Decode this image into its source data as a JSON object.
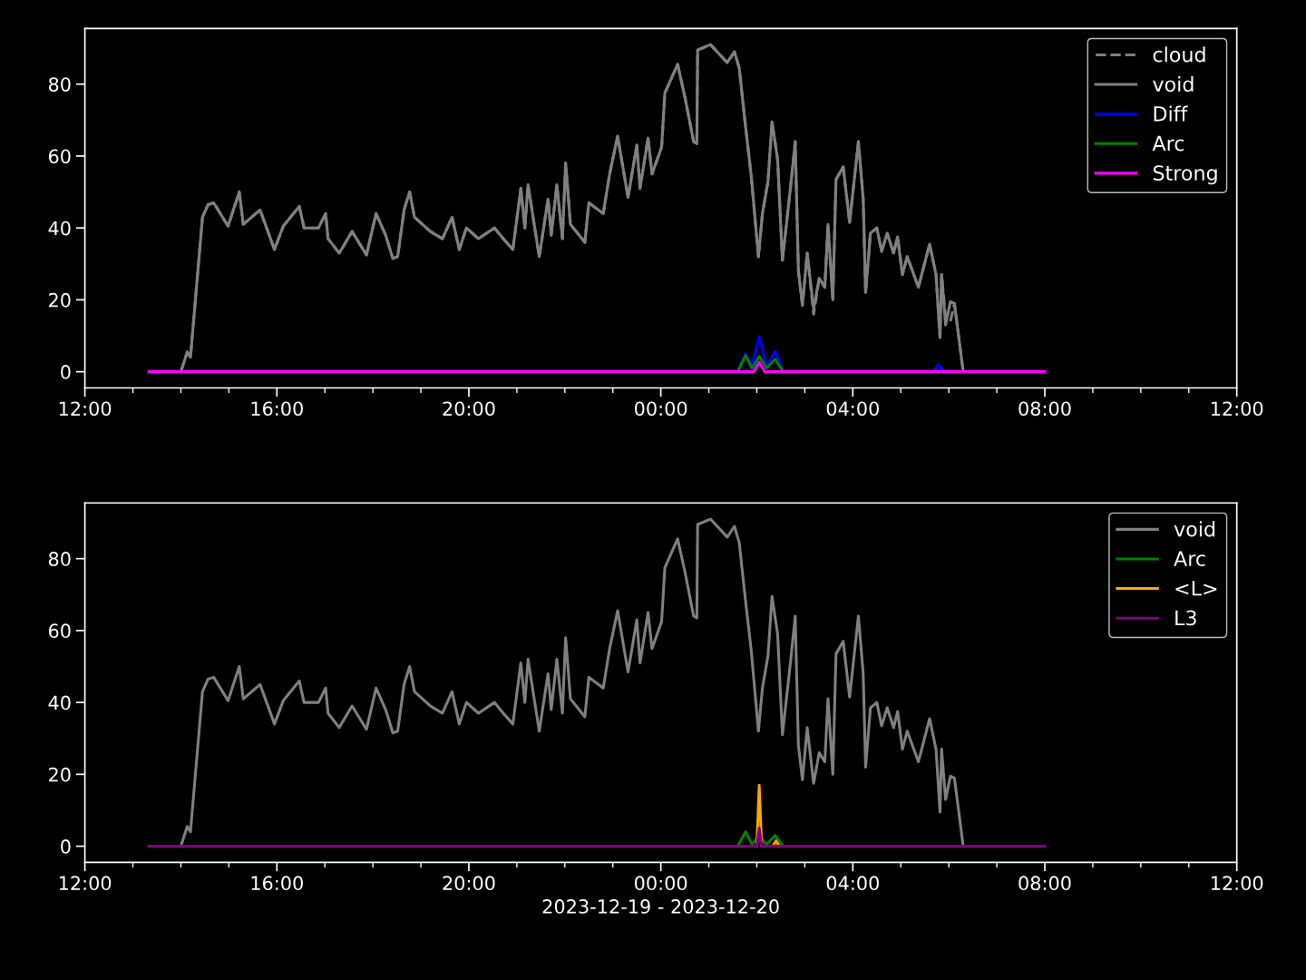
{
  "chart_data": [
    {
      "type": "line",
      "xlim": [
        "2023-12-19T12:00",
        "2023-12-20T12:00"
      ],
      "xticks": [
        {
          "value": "2023-12-19T12:00",
          "label": "12:00"
        },
        {
          "value": "2023-12-19T13:00",
          "label": null
        },
        {
          "value": "2023-12-19T14:00",
          "label": null
        },
        {
          "value": "2023-12-19T15:00",
          "label": null
        },
        {
          "value": "2023-12-19T16:00",
          "label": "16:00"
        },
        {
          "value": "2023-12-19T17:00",
          "label": null
        },
        {
          "value": "2023-12-19T18:00",
          "label": null
        },
        {
          "value": "2023-12-19T19:00",
          "label": null
        },
        {
          "value": "2023-12-19T20:00",
          "label": "20:00"
        },
        {
          "value": "2023-12-19T21:00",
          "label": null
        },
        {
          "value": "2023-12-19T22:00",
          "label": null
        },
        {
          "value": "2023-12-19T23:00",
          "label": null
        },
        {
          "value": "2023-12-20T00:00",
          "label": "00:00"
        },
        {
          "value": "2023-12-20T01:00",
          "label": null
        },
        {
          "value": "2023-12-20T02:00",
          "label": null
        },
        {
          "value": "2023-12-20T03:00",
          "label": null
        },
        {
          "value": "2023-12-20T04:00",
          "label": "04:00"
        },
        {
          "value": "2023-12-20T05:00",
          "label": null
        },
        {
          "value": "2023-12-20T06:00",
          "label": null
        },
        {
          "value": "2023-12-20T07:00",
          "label": null
        },
        {
          "value": "2023-12-20T08:00",
          "label": "08:00"
        },
        {
          "value": "2023-12-20T09:00",
          "label": null
        },
        {
          "value": "2023-12-20T10:00",
          "label": null
        },
        {
          "value": "2023-12-20T11:00",
          "label": null
        },
        {
          "value": "2023-12-20T12:00",
          "label": "12:00"
        }
      ],
      "ylim": [
        -4.5,
        95.5
      ],
      "yticks": [
        0,
        20,
        40,
        60,
        80
      ],
      "grid": false,
      "legend": "top right",
      "series": [
        {
          "name": "cloud",
          "color": "#808080",
          "line_style": "dashed",
          "x": [
            "2023-12-19T14:00",
            "2023-12-19T14:08",
            "2023-12-19T14:12",
            "2023-12-19T14:27",
            "2023-12-19T14:34",
            "2023-12-19T14:41",
            "2023-12-19T14:59",
            "2023-12-19T15:13",
            "2023-12-19T15:18",
            "2023-12-19T15:39",
            "2023-12-19T15:57",
            "2023-12-19T16:08",
            "2023-12-19T16:28",
            "2023-12-19T16:34",
            "2023-12-19T16:52",
            "2023-12-19T17:01",
            "2023-12-19T17:04",
            "2023-12-19T17:18",
            "2023-12-19T17:34",
            "2023-12-19T17:52",
            "2023-12-19T18:04",
            "2023-12-19T18:16",
            "2023-12-19T18:25",
            "2023-12-19T18:31",
            "2023-12-19T18:39",
            "2023-12-19T18:46",
            "2023-12-19T18:52",
            "2023-12-19T19:12",
            "2023-12-19T19:27",
            "2023-12-19T19:39",
            "2023-12-19T19:48",
            "2023-12-19T19:57",
            "2023-12-19T20:12",
            "2023-12-19T20:32",
            "2023-12-19T20:43",
            "2023-12-19T20:55",
            "2023-12-19T21:05",
            "2023-12-19T21:10",
            "2023-12-19T21:14",
            "2023-12-19T21:28",
            "2023-12-19T21:39",
            "2023-12-19T21:43",
            "2023-12-19T21:50",
            "2023-12-19T21:57",
            "2023-12-19T22:01",
            "2023-12-19T22:07",
            "2023-12-19T22:25",
            "2023-12-19T22:30",
            "2023-12-19T22:48",
            "2023-12-19T22:56",
            "2023-12-19T23:06",
            "2023-12-19T23:19",
            "2023-12-19T23:30",
            "2023-12-19T23:34",
            "2023-12-19T23:44",
            "2023-12-19T23:49",
            "2023-12-20T00:01",
            "2023-12-20T00:05",
            "2023-12-20T00:21",
            "2023-12-20T00:30",
            "2023-12-20T00:41",
            "2023-12-20T00:45",
            "2023-12-20T00:46",
            "2023-12-20T01:02",
            "2023-12-20T01:23",
            "2023-12-20T01:32",
            "2023-12-20T01:38",
            "2023-12-20T01:46",
            "2023-12-20T01:53",
            "2023-12-20T02:02",
            "2023-12-20T02:07",
            "2023-12-20T02:14",
            "2023-12-20T02:19",
            "2023-12-20T02:26",
            "2023-12-20T02:32",
            "2023-12-20T02:42",
            "2023-12-20T02:48",
            "2023-12-20T02:52",
            "2023-12-20T02:57",
            "2023-12-20T03:03",
            "2023-12-20T03:11",
            "2023-12-20T03:18",
            "2023-12-20T03:25",
            "2023-12-20T03:29",
            "2023-12-20T03:35",
            "2023-12-20T03:39",
            "2023-12-20T03:48",
            "2023-12-20T03:56",
            "2023-12-20T04:07",
            "2023-12-20T04:13",
            "2023-12-20T04:16",
            "2023-12-20T04:22",
            "2023-12-20T04:30",
            "2023-12-20T04:36",
            "2023-12-20T04:43",
            "2023-12-20T04:51",
            "2023-12-20T04:56",
            "2023-12-20T05:02",
            "2023-12-20T05:08",
            "2023-12-20T05:22",
            "2023-12-20T05:36",
            "2023-12-20T05:44",
            "2023-12-20T05:49",
            "2023-12-20T05:51",
            "2023-12-20T05:56",
            "2023-12-20T06:02",
            "2023-12-20T06:07",
            "2023-12-20T06:18"
          ],
          "values": [
            0,
            5.5,
            4,
            43,
            46.5,
            47,
            40.5,
            50,
            41,
            45,
            34,
            40.5,
            46,
            40,
            40,
            44,
            37,
            33,
            39,
            32.5,
            44,
            38,
            31.5,
            32,
            45,
            50,
            43,
            39,
            37,
            43,
            34,
            40,
            37,
            40,
            37,
            34,
            51,
            40,
            52,
            32,
            48,
            38,
            52,
            37,
            58,
            41,
            36,
            47,
            44,
            55,
            65.5,
            48.5,
            63,
            51,
            65,
            55,
            62.5,
            77.5,
            85.5,
            76.5,
            64,
            63.5,
            89.5,
            91,
            86,
            89,
            84.5,
            68,
            54.5,
            32,
            44,
            53,
            69.5,
            59,
            31,
            51,
            64,
            28,
            18.5,
            33,
            16,
            26,
            23.5,
            41,
            20,
            53.5,
            57,
            41.5,
            64,
            48,
            22,
            38.5,
            40,
            33.5,
            38.5,
            33,
            37.5,
            27,
            32,
            23.5,
            35.5,
            27,
            9.5,
            27,
            15,
            14,
            19,
            0
          ]
        },
        {
          "name": "void",
          "color": "#808080",
          "line_style": "solid",
          "x": [
            "2023-12-19T14:00",
            "2023-12-19T14:08",
            "2023-12-19T14:12",
            "2023-12-19T14:27",
            "2023-12-19T14:34",
            "2023-12-19T14:41",
            "2023-12-19T14:59",
            "2023-12-19T15:13",
            "2023-12-19T15:18",
            "2023-12-19T15:39",
            "2023-12-19T15:57",
            "2023-12-19T16:08",
            "2023-12-19T16:28",
            "2023-12-19T16:34",
            "2023-12-19T16:52",
            "2023-12-19T17:01",
            "2023-12-19T17:04",
            "2023-12-19T17:18",
            "2023-12-19T17:34",
            "2023-12-19T17:52",
            "2023-12-19T18:04",
            "2023-12-19T18:16",
            "2023-12-19T18:25",
            "2023-12-19T18:31",
            "2023-12-19T18:39",
            "2023-12-19T18:46",
            "2023-12-19T18:52",
            "2023-12-19T19:12",
            "2023-12-19T19:27",
            "2023-12-19T19:39",
            "2023-12-19T19:48",
            "2023-12-19T19:57",
            "2023-12-19T20:12",
            "2023-12-19T20:32",
            "2023-12-19T20:43",
            "2023-12-19T20:55",
            "2023-12-19T21:05",
            "2023-12-19T21:10",
            "2023-12-19T21:14",
            "2023-12-19T21:28",
            "2023-12-19T21:39",
            "2023-12-19T21:43",
            "2023-12-19T21:50",
            "2023-12-19T21:57",
            "2023-12-19T22:01",
            "2023-12-19T22:07",
            "2023-12-19T22:25",
            "2023-12-19T22:30",
            "2023-12-19T22:48",
            "2023-12-19T22:56",
            "2023-12-19T23:06",
            "2023-12-19T23:19",
            "2023-12-19T23:30",
            "2023-12-19T23:34",
            "2023-12-19T23:44",
            "2023-12-19T23:49",
            "2023-12-20T00:01",
            "2023-12-20T00:05",
            "2023-12-20T00:21",
            "2023-12-20T00:30",
            "2023-12-20T00:41",
            "2023-12-20T00:45",
            "2023-12-20T00:46",
            "2023-12-20T01:02",
            "2023-12-20T01:23",
            "2023-12-20T01:32",
            "2023-12-20T01:38",
            "2023-12-20T01:46",
            "2023-12-20T01:53",
            "2023-12-20T02:02",
            "2023-12-20T02:07",
            "2023-12-20T02:14",
            "2023-12-20T02:19",
            "2023-12-20T02:26",
            "2023-12-20T02:32",
            "2023-12-20T02:42",
            "2023-12-20T02:48",
            "2023-12-20T02:52",
            "2023-12-20T02:57",
            "2023-12-20T03:03",
            "2023-12-20T03:11",
            "2023-12-20T03:18",
            "2023-12-20T03:25",
            "2023-12-20T03:29",
            "2023-12-20T03:35",
            "2023-12-20T03:39",
            "2023-12-20T03:48",
            "2023-12-20T03:56",
            "2023-12-20T04:07",
            "2023-12-20T04:13",
            "2023-12-20T04:16",
            "2023-12-20T04:22",
            "2023-12-20T04:30",
            "2023-12-20T04:36",
            "2023-12-20T04:43",
            "2023-12-20T04:51",
            "2023-12-20T04:56",
            "2023-12-20T05:02",
            "2023-12-20T05:08",
            "2023-12-20T05:22",
            "2023-12-20T05:36",
            "2023-12-20T05:44",
            "2023-12-20T05:49",
            "2023-12-20T05:51",
            "2023-12-20T05:56",
            "2023-12-20T06:02",
            "2023-12-20T06:07",
            "2023-12-20T06:18"
          ],
          "values": [
            0,
            5.5,
            4,
            43,
            46.5,
            47,
            40.5,
            50,
            41,
            45,
            34,
            40.5,
            46,
            40,
            40,
            44,
            37,
            33,
            39,
            32.5,
            44,
            38,
            31.5,
            32,
            45,
            50,
            43,
            39,
            37,
            43,
            34,
            40,
            37,
            40,
            37,
            34,
            51,
            40,
            52,
            32,
            48,
            38,
            52,
            37,
            58,
            41,
            36,
            47,
            44,
            55,
            65.5,
            48.5,
            63,
            51,
            65,
            55,
            62.5,
            77.5,
            85.5,
            76.5,
            64,
            63.5,
            89.5,
            91,
            86,
            89,
            84.5,
            68,
            54.5,
            32,
            44,
            53,
            69.5,
            59,
            31,
            51,
            64,
            28,
            18.5,
            33,
            17.5,
            26,
            23.5,
            41,
            20,
            53.5,
            57,
            41.5,
            64,
            48,
            22,
            38.5,
            40,
            33.5,
            38.5,
            33,
            37.5,
            27,
            32,
            23.5,
            35.5,
            27,
            9.5,
            27,
            13,
            19.5,
            19,
            0
          ]
        },
        {
          "name": "Diff",
          "color": "#0000ff",
          "line_style": "solid",
          "x": [
            "2023-12-20T01:36",
            "2023-12-20T01:46",
            "2023-12-20T01:54",
            "2023-12-20T02:03",
            "2023-12-20T02:12",
            "2023-12-20T02:23",
            "2023-12-20T02:33",
            "2023-12-20T04:00",
            "2023-12-20T05:40",
            "2023-12-20T05:47",
            "2023-12-20T05:54"
          ],
          "values": [
            0,
            5,
            1.5,
            9.8,
            1.5,
            5.7,
            0,
            null,
            0,
            2,
            0
          ]
        },
        {
          "name": "Arc",
          "color": "#008000",
          "line_style": "solid",
          "x": [
            "2023-12-20T01:36",
            "2023-12-20T01:46",
            "2023-12-20T01:54",
            "2023-12-20T02:03",
            "2023-12-20T02:12",
            "2023-12-20T02:23",
            "2023-12-20T02:33"
          ],
          "values": [
            0,
            4.5,
            1,
            4.3,
            1,
            3.5,
            0
          ]
        },
        {
          "name": "Strong",
          "color": "#ff00ff",
          "line_style": "solid",
          "x": [
            "2023-12-19T13:20",
            "2023-12-20T01:56",
            "2023-12-20T02:03",
            "2023-12-20T02:10",
            "2023-12-20T08:00"
          ],
          "values": [
            0,
            0,
            2.6,
            0,
            0
          ]
        }
      ]
    },
    {
      "type": "line",
      "xlim": [
        "2023-12-19T12:00",
        "2023-12-20T12:00"
      ],
      "xticks": [
        {
          "value": "2023-12-19T12:00",
          "label": "12:00"
        },
        {
          "value": "2023-12-19T13:00",
          "label": null
        },
        {
          "value": "2023-12-19T14:00",
          "label": null
        },
        {
          "value": "2023-12-19T15:00",
          "label": null
        },
        {
          "value": "2023-12-19T16:00",
          "label": "16:00"
        },
        {
          "value": "2023-12-19T17:00",
          "label": null
        },
        {
          "value": "2023-12-19T18:00",
          "label": null
        },
        {
          "value": "2023-12-19T19:00",
          "label": null
        },
        {
          "value": "2023-12-19T20:00",
          "label": "20:00"
        },
        {
          "value": "2023-12-19T21:00",
          "label": null
        },
        {
          "value": "2023-12-19T22:00",
          "label": null
        },
        {
          "value": "2023-12-19T23:00",
          "label": null
        },
        {
          "value": "2023-12-20T00:00",
          "label": "00:00"
        },
        {
          "value": "2023-12-20T01:00",
          "label": null
        },
        {
          "value": "2023-12-20T02:00",
          "label": null
        },
        {
          "value": "2023-12-20T03:00",
          "label": null
        },
        {
          "value": "2023-12-20T04:00",
          "label": "04:00"
        },
        {
          "value": "2023-12-20T05:00",
          "label": null
        },
        {
          "value": "2023-12-20T06:00",
          "label": null
        },
        {
          "value": "2023-12-20T07:00",
          "label": null
        },
        {
          "value": "2023-12-20T08:00",
          "label": "08:00"
        },
        {
          "value": "2023-12-20T09:00",
          "label": null
        },
        {
          "value": "2023-12-20T10:00",
          "label": null
        },
        {
          "value": "2023-12-20T11:00",
          "label": null
        },
        {
          "value": "2023-12-20T12:00",
          "label": "12:00"
        }
      ],
      "ylim": [
        -4.5,
        95.5
      ],
      "yticks": [
        0,
        20,
        40,
        60,
        80
      ],
      "grid": false,
      "legend": "top right",
      "xlabel": "2023-12-19 - 2023-12-20",
      "series": [
        {
          "name": "void",
          "color": "#808080",
          "line_style": "solid",
          "x": [
            "2023-12-19T14:00",
            "2023-12-19T14:08",
            "2023-12-19T14:12",
            "2023-12-19T14:27",
            "2023-12-19T14:34",
            "2023-12-19T14:41",
            "2023-12-19T14:59",
            "2023-12-19T15:13",
            "2023-12-19T15:18",
            "2023-12-19T15:39",
            "2023-12-19T15:57",
            "2023-12-19T16:08",
            "2023-12-19T16:28",
            "2023-12-19T16:34",
            "2023-12-19T16:52",
            "2023-12-19T17:01",
            "2023-12-19T17:04",
            "2023-12-19T17:18",
            "2023-12-19T17:34",
            "2023-12-19T17:52",
            "2023-12-19T18:04",
            "2023-12-19T18:16",
            "2023-12-19T18:25",
            "2023-12-19T18:31",
            "2023-12-19T18:39",
            "2023-12-19T18:46",
            "2023-12-19T18:52",
            "2023-12-19T19:12",
            "2023-12-19T19:27",
            "2023-12-19T19:39",
            "2023-12-19T19:48",
            "2023-12-19T19:57",
            "2023-12-19T20:12",
            "2023-12-19T20:32",
            "2023-12-19T20:43",
            "2023-12-19T20:55",
            "2023-12-19T21:05",
            "2023-12-19T21:10",
            "2023-12-19T21:14",
            "2023-12-19T21:28",
            "2023-12-19T21:39",
            "2023-12-19T21:43",
            "2023-12-19T21:50",
            "2023-12-19T21:57",
            "2023-12-19T22:01",
            "2023-12-19T22:07",
            "2023-12-19T22:25",
            "2023-12-19T22:30",
            "2023-12-19T22:48",
            "2023-12-19T22:56",
            "2023-12-19T23:06",
            "2023-12-19T23:19",
            "2023-12-19T23:30",
            "2023-12-19T23:34",
            "2023-12-19T23:44",
            "2023-12-19T23:49",
            "2023-12-20T00:01",
            "2023-12-20T00:05",
            "2023-12-20T00:21",
            "2023-12-20T00:30",
            "2023-12-20T00:41",
            "2023-12-20T00:45",
            "2023-12-20T00:46",
            "2023-12-20T01:02",
            "2023-12-20T01:23",
            "2023-12-20T01:32",
            "2023-12-20T01:38",
            "2023-12-20T01:46",
            "2023-12-20T01:53",
            "2023-12-20T02:02",
            "2023-12-20T02:07",
            "2023-12-20T02:14",
            "2023-12-20T02:19",
            "2023-12-20T02:26",
            "2023-12-20T02:32",
            "2023-12-20T02:42",
            "2023-12-20T02:48",
            "2023-12-20T02:52",
            "2023-12-20T02:57",
            "2023-12-20T03:03",
            "2023-12-20T03:11",
            "2023-12-20T03:18",
            "2023-12-20T03:25",
            "2023-12-20T03:29",
            "2023-12-20T03:35",
            "2023-12-20T03:39",
            "2023-12-20T03:48",
            "2023-12-20T03:56",
            "2023-12-20T04:07",
            "2023-12-20T04:13",
            "2023-12-20T04:16",
            "2023-12-20T04:22",
            "2023-12-20T04:30",
            "2023-12-20T04:36",
            "2023-12-20T04:43",
            "2023-12-20T04:51",
            "2023-12-20T04:56",
            "2023-12-20T05:02",
            "2023-12-20T05:08",
            "2023-12-20T05:22",
            "2023-12-20T05:36",
            "2023-12-20T05:44",
            "2023-12-20T05:49",
            "2023-12-20T05:51",
            "2023-12-20T05:56",
            "2023-12-20T06:02",
            "2023-12-20T06:07",
            "2023-12-20T06:18"
          ],
          "values": [
            0,
            5.5,
            4,
            43,
            46.5,
            47,
            40.5,
            50,
            41,
            45,
            34,
            40.5,
            46,
            40,
            40,
            44,
            37,
            33,
            39,
            32.5,
            44,
            38,
            31.5,
            32,
            45,
            50,
            43,
            39,
            37,
            43,
            34,
            40,
            37,
            40,
            37,
            34,
            51,
            40,
            52,
            32,
            48,
            38,
            52,
            37,
            58,
            41,
            36,
            47,
            44,
            55,
            65.5,
            48.5,
            63,
            51,
            65,
            55,
            62.5,
            77.5,
            85.5,
            76.5,
            64,
            63.5,
            89.5,
            91,
            86,
            89,
            84.5,
            68,
            54.5,
            32,
            44,
            53,
            69.5,
            59,
            31,
            51,
            64,
            28,
            18.5,
            33,
            17.5,
            26,
            23.5,
            41,
            20,
            53.5,
            57,
            41.5,
            64,
            48,
            22,
            38.5,
            40,
            33.5,
            38.5,
            33,
            37.5,
            27,
            32,
            23.5,
            35.5,
            27,
            9.5,
            27,
            13,
            19.5,
            19,
            0
          ]
        },
        {
          "name": "Arc",
          "color": "#008000",
          "line_style": "solid",
          "x": [
            "2023-12-20T01:36",
            "2023-12-20T01:46",
            "2023-12-20T01:54",
            "2023-12-20T02:03",
            "2023-12-20T02:12",
            "2023-12-20T02:23",
            "2023-12-20T02:33"
          ],
          "values": [
            0,
            4,
            0.5,
            3,
            0.5,
            3,
            0
          ]
        },
        {
          "name": "<L>",
          "color": "#ffa500",
          "line_style": "solid",
          "x": [
            "2023-12-20T02:00",
            "2023-12-20T02:03",
            "2023-12-20T02:06",
            "2023-12-20T02:20",
            "2023-12-20T02:24",
            "2023-12-20T02:28"
          ],
          "values": [
            0,
            17,
            0,
            0,
            1.5,
            0
          ]
        },
        {
          "name": "L3",
          "color": "#800080",
          "line_style": "solid",
          "x": [
            "2023-12-19T13:20",
            "2023-12-20T02:00",
            "2023-12-20T02:03",
            "2023-12-20T02:06",
            "2023-12-20T08:00"
          ],
          "values": [
            0,
            0,
            5,
            0,
            0
          ]
        }
      ]
    }
  ]
}
